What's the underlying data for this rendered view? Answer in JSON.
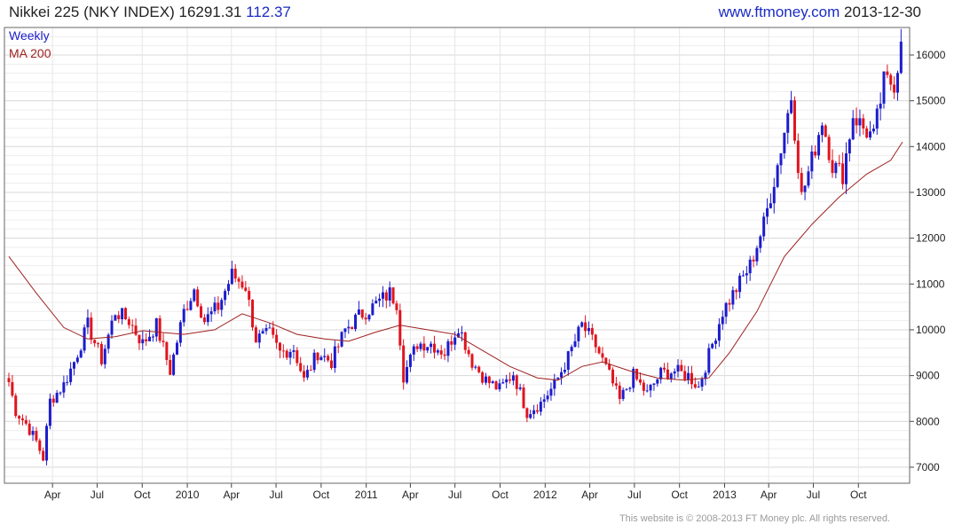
{
  "header": {
    "title": "Nikkei 225 (NKY INDEX)",
    "last": "16291.31",
    "change": "112.37",
    "website": "www.ftmoney.com",
    "date": "2013-12-30"
  },
  "footer": {
    "text": "This website is © 2008-2013 FT Money plc. All rights reserved."
  },
  "colors": {
    "up": "#1c1ccc",
    "down": "#e0141e",
    "ma": "#a02020",
    "legend_weekly": "#1c1ccc",
    "legend_ma": "#a02020",
    "grid": "#d8d8d8"
  },
  "chart_data": {
    "type": "candlestick",
    "title": "Nikkei 225 (NKY INDEX)",
    "frequency": "weekly",
    "legend": [
      "Weekly",
      "MA 200"
    ],
    "legend_position": "top-left",
    "grid": true,
    "y_axis_side": "right",
    "ylim": [
      6650,
      16600
    ],
    "y_ticks": [
      7000,
      8000,
      9000,
      10000,
      11000,
      12000,
      13000,
      14000,
      15000,
      16000
    ],
    "x_range": [
      "2009-01-02",
      "2013-12-30"
    ],
    "x_ticks": [
      {
        "label": "Apr",
        "date": "2009-04-01"
      },
      {
        "label": "Jul",
        "date": "2009-07-01"
      },
      {
        "label": "Oct",
        "date": "2009-10-01"
      },
      {
        "label": "2010",
        "date": "2010-01-01"
      },
      {
        "label": "Apr",
        "date": "2010-04-01"
      },
      {
        "label": "Jul",
        "date": "2010-07-01"
      },
      {
        "label": "Oct",
        "date": "2010-10-01"
      },
      {
        "label": "2011",
        "date": "2011-01-01"
      },
      {
        "label": "Apr",
        "date": "2011-04-01"
      },
      {
        "label": "Jul",
        "date": "2011-07-01"
      },
      {
        "label": "Oct",
        "date": "2011-10-01"
      },
      {
        "label": "2012",
        "date": "2012-01-01"
      },
      {
        "label": "Apr",
        "date": "2012-04-01"
      },
      {
        "label": "Jul",
        "date": "2012-07-01"
      },
      {
        "label": "Oct",
        "date": "2012-10-01"
      },
      {
        "label": "2013",
        "date": "2013-01-01"
      },
      {
        "label": "Apr",
        "date": "2013-04-01"
      },
      {
        "label": "Jul",
        "date": "2013-07-01"
      },
      {
        "label": "Oct",
        "date": "2013-10-01"
      }
    ],
    "close_path": [
      [
        "2009-01-02",
        8860
      ],
      [
        "2009-01-16",
        8230
      ],
      [
        "2009-02-06",
        7950
      ],
      [
        "2009-02-27",
        7560
      ],
      [
        "2009-03-13",
        7200
      ],
      [
        "2009-03-27",
        8450
      ],
      [
        "2009-04-24",
        8800
      ],
      [
        "2009-05-15",
        9300
      ],
      [
        "2009-06-12",
        10100
      ],
      [
        "2009-07-10",
        9350
      ],
      [
        "2009-08-07",
        10400
      ],
      [
        "2009-09-04",
        10200
      ],
      [
        "2009-10-02",
        9700
      ],
      [
        "2009-10-30",
        10100
      ],
      [
        "2009-11-27",
        9100
      ],
      [
        "2009-12-25",
        10400
      ],
      [
        "2010-01-15",
        10900
      ],
      [
        "2010-02-05",
        10200
      ],
      [
        "2010-03-05",
        10500
      ],
      [
        "2010-04-02",
        11200
      ],
      [
        "2010-04-30",
        10950
      ],
      [
        "2010-05-21",
        9800
      ],
      [
        "2010-06-18",
        9900
      ],
      [
        "2010-07-09",
        9500
      ],
      [
        "2010-08-06",
        9600
      ],
      [
        "2010-08-27",
        8900
      ],
      [
        "2010-09-24",
        9500
      ],
      [
        "2010-10-22",
        9300
      ],
      [
        "2010-11-19",
        10000
      ],
      [
        "2010-12-17",
        10300
      ],
      [
        "2011-01-14",
        10500
      ],
      [
        "2011-02-18",
        10800
      ],
      [
        "2011-03-04",
        10600
      ],
      [
        "2011-03-18",
        9000
      ],
      [
        "2011-04-15",
        9700
      ],
      [
        "2011-05-13",
        9700
      ],
      [
        "2011-06-10",
        9500
      ],
      [
        "2011-07-08",
        10100
      ],
      [
        "2011-08-05",
        9300
      ],
      [
        "2011-09-02",
        8900
      ],
      [
        "2011-09-30",
        8700
      ],
      [
        "2011-10-28",
        9050
      ],
      [
        "2011-11-25",
        8200
      ],
      [
        "2011-12-23",
        8400
      ],
      [
        "2012-01-20",
        8800
      ],
      [
        "2012-02-17",
        9400
      ],
      [
        "2012-03-16",
        10100
      ],
      [
        "2012-04-13",
        9650
      ],
      [
        "2012-05-11",
        9000
      ],
      [
        "2012-06-01",
        8450
      ],
      [
        "2012-06-29",
        9000
      ],
      [
        "2012-07-27",
        8600
      ],
      [
        "2012-08-24",
        9050
      ],
      [
        "2012-09-21",
        9100
      ],
      [
        "2012-10-19",
        9000
      ],
      [
        "2012-11-09",
        8750
      ],
      [
        "2012-11-30",
        9450
      ],
      [
        "2012-12-28",
        10400
      ],
      [
        "2013-01-25",
        10900
      ],
      [
        "2013-02-22",
        11400
      ],
      [
        "2013-03-22",
        12300
      ],
      [
        "2013-04-19",
        13600
      ],
      [
        "2013-05-17",
        15100
      ],
      [
        "2013-06-07",
        12900
      ],
      [
        "2013-06-28",
        13700
      ],
      [
        "2013-07-19",
        14600
      ],
      [
        "2013-08-09",
        13600
      ],
      [
        "2013-08-30",
        13400
      ],
      [
        "2013-09-20",
        14700
      ],
      [
        "2013-10-11",
        14400
      ],
      [
        "2013-11-01",
        14200
      ],
      [
        "2013-11-22",
        15400
      ],
      [
        "2013-12-13",
        15400
      ],
      [
        "2013-12-30",
        16291
      ]
    ],
    "ma200_path": [
      [
        "2009-01-02",
        11600
      ],
      [
        "2009-02-27",
        10800
      ],
      [
        "2009-04-24",
        10050
      ],
      [
        "2009-06-12",
        9800
      ],
      [
        "2009-08-07",
        9850
      ],
      [
        "2009-10-02",
        9980
      ],
      [
        "2009-12-25",
        9900
      ],
      [
        "2010-02-26",
        10000
      ],
      [
        "2010-04-23",
        10350
      ],
      [
        "2010-06-18",
        10150
      ],
      [
        "2010-08-13",
        9900
      ],
      [
        "2010-10-08",
        9800
      ],
      [
        "2010-11-26",
        9750
      ],
      [
        "2011-01-21",
        9950
      ],
      [
        "2011-03-11",
        10100
      ],
      [
        "2011-05-06",
        10000
      ],
      [
        "2011-07-01",
        9900
      ],
      [
        "2011-08-26",
        9550
      ],
      [
        "2011-10-21",
        9200
      ],
      [
        "2011-12-16",
        8950
      ],
      [
        "2012-01-27",
        8900
      ],
      [
        "2012-03-16",
        9200
      ],
      [
        "2012-04-27",
        9300
      ],
      [
        "2012-06-22",
        9100
      ],
      [
        "2012-08-17",
        8950
      ],
      [
        "2012-10-12",
        8900
      ],
      [
        "2012-11-30",
        8950
      ],
      [
        "2013-01-11",
        9500
      ],
      [
        "2013-03-08",
        10400
      ],
      [
        "2013-05-03",
        11600
      ],
      [
        "2013-06-28",
        12300
      ],
      [
        "2013-08-23",
        12900
      ],
      [
        "2013-10-18",
        13400
      ],
      [
        "2013-12-06",
        13700
      ],
      [
        "2013-12-30",
        14100
      ]
    ]
  }
}
